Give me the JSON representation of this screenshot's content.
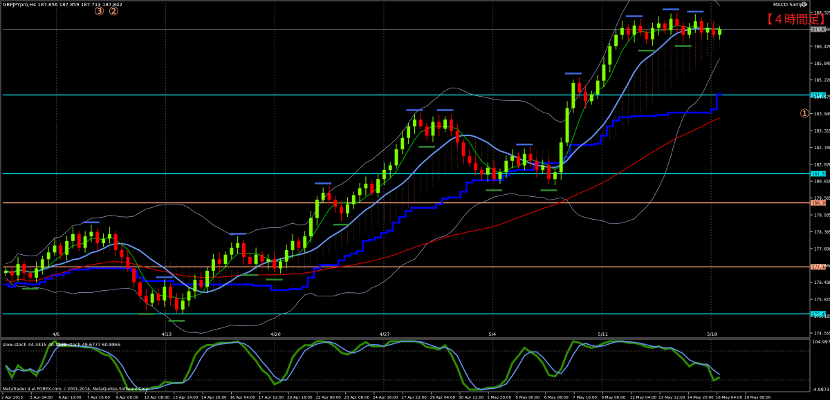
{
  "window": {
    "symbol_line": "GBPJPYpro,H4  187.856 187.859 187.713 187.842",
    "ea_label": "MACD Sample",
    "smiley": "☺",
    "timeframe_label": "【４時間足】",
    "circled_one": "①",
    "circled_three_two": "③ ②",
    "copyright": "MetaTrader 4 at FOREX.com, c 2001-2014, MetaQuotes Software Corp."
  },
  "colors": {
    "background": "#000000",
    "bull": "#7fff00",
    "bear": "#ff0000",
    "support_cyan": "#00e5ee",
    "level_salmon": "#ffa07a",
    "level_white": "#ffffff",
    "ichimoku_blue": "#0000ff",
    "ma_red": "#e00000",
    "ma_lightblue": "#6495ed",
    "ma_green": "#00c000",
    "bollinger": "#a0a0c8",
    "stoch_main": "#6495ed",
    "stoch_signal": "#2e8b00",
    "marker_orange": "#ffa500"
  },
  "chart_data": {
    "type": "candlestick",
    "price_axis": {
      "ticks": [
        "188.325",
        "187.842",
        "187.095",
        "186.470",
        "185.845",
        "185.220",
        "184.974",
        "184.575",
        "183.945",
        "183.315",
        "182.700",
        "182.070",
        "181.536",
        "180.810",
        "180.264",
        "179.565",
        "178.935",
        "178.305",
        "177.690",
        "177.467",
        "177.060",
        "176.430",
        "175.815",
        "175.416",
        "175.185",
        "174.555"
      ],
      "range": [
        174.4,
        189.0
      ],
      "current_price": "187.842"
    },
    "date_markers": [
      "4/6",
      "4/13",
      "4/20",
      "4/27",
      "5/4",
      "5/11",
      "5/18"
    ],
    "time_axis_labels": [
      "2 Apr 2015",
      "3 Apr 04:00",
      "6 Apr 10:00",
      "7 Apr 16:00",
      "9 Apr 00:00",
      "10 Apr 08:00",
      "13 Apr 14:00",
      "14 Apr 20:00",
      "16 Apr 04:00",
      "17 Apr 12:00",
      "20 Apr 18:00",
      "22 Apr 00:00",
      "23 Apr 08:00",
      "24 Apr 16:00",
      "27 Apr 22:00",
      "29 Apr 04:00",
      "30 Apr 12:00",
      "1 May 20:00",
      "5 May 00:00",
      "6 May 08:00",
      "7 May 16:00",
      "9 May 00:00",
      "12 May 04:00",
      "13 May 12:00",
      "14 May 20:00",
      "16 May 04:00",
      "19 May 08:00"
    ],
    "horizontal_levels": [
      {
        "price": 184.974,
        "color": "cyan",
        "label": "184.974"
      },
      {
        "price": 181.536,
        "color": "cyan",
        "label": "181.536"
      },
      {
        "price": 175.416,
        "color": "cyan",
        "label": "175.416"
      },
      {
        "price": 180.264,
        "color": "salmon",
        "label": "180.264"
      },
      {
        "price": 177.467,
        "color": "salmon",
        "label": "177.467"
      },
      {
        "price": 187.842,
        "color": "white",
        "label": "187.842"
      }
    ],
    "closes": [
      177.3,
      177.1,
      177.6,
      177.2,
      177.0,
      177.4,
      177.8,
      178.1,
      178.4,
      178.0,
      178.6,
      178.9,
      178.3,
      178.8,
      179.0,
      178.5,
      178.7,
      178.9,
      178.2,
      177.9,
      177.4,
      176.8,
      176.2,
      175.9,
      176.3,
      176.0,
      176.6,
      176.1,
      175.6,
      176.0,
      176.4,
      176.9,
      176.6,
      177.3,
      177.8,
      177.6,
      178.0,
      178.3,
      178.5,
      177.9,
      177.6,
      178.0,
      177.7,
      177.8,
      177.4,
      177.7,
      178.2,
      178.6,
      178.3,
      178.8,
      179.6,
      180.4,
      180.7,
      180.4,
      180.1,
      179.8,
      180.2,
      180.6,
      180.9,
      181.1,
      180.7,
      181.3,
      181.7,
      181.9,
      182.6,
      183.1,
      183.6,
      183.9,
      183.6,
      183.2,
      183.8,
      183.5,
      183.9,
      183.4,
      182.9,
      182.3,
      182.0,
      181.7,
      181.5,
      181.8,
      181.3,
      181.6,
      182.1,
      182.3,
      181.9,
      182.4,
      182.1,
      181.7,
      181.9,
      181.3,
      181.6,
      182.9,
      184.4,
      185.5,
      185.1,
      184.7,
      185.0,
      185.6,
      186.3,
      187.1,
      187.6,
      187.9,
      187.6,
      188.0,
      187.7,
      187.4,
      187.9,
      188.1,
      187.8,
      188.3,
      188.0,
      187.6,
      187.9,
      188.2,
      187.7,
      187.9,
      187.6,
      187.842
    ],
    "stochastic": {
      "label_main": "slow-stoch 44.3415 40.1338",
      "label_slow": "slow-stoch 49.6777 60.8865",
      "axis_max": "104.9973",
      "axis_min": "-4.9973"
    }
  }
}
